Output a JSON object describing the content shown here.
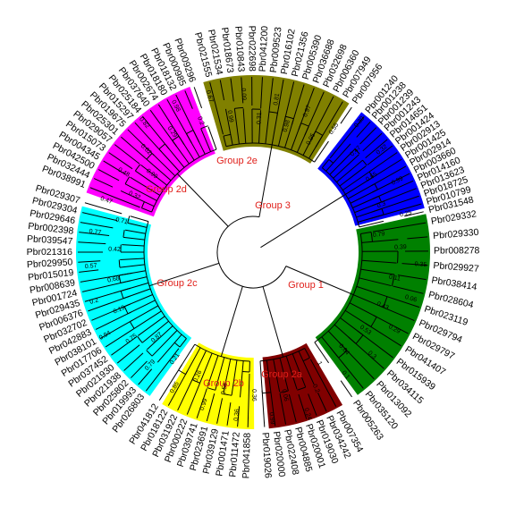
{
  "tree": {
    "groups": [
      {
        "key": "group1",
        "label": "Group 1",
        "color": "#008000",
        "leaves": [
          "Pbr029332",
          "Pbr029330",
          "Pbr008278",
          "Pbr029927",
          "Pbr038414",
          "Pbr028604",
          "Pbr023119",
          "Pbr029794",
          "Pbr029797",
          "Pbr041407",
          "Pbr015939",
          "Pbr034115",
          "Pbr013092",
          "Pbr035120",
          "Pbr005263"
        ]
      },
      {
        "key": "group2a",
        "label": "Group 2a",
        "color": "#800000",
        "leaves": [
          "Pbr007354",
          "Pbr034242",
          "Pbr019030",
          "Pbr020001",
          "Pbr004885",
          "Pbr022408",
          "Pbr020000",
          "Pbr019026"
        ]
      },
      {
        "key": "group2b",
        "label": "Group 2b",
        "color": "#ffff00",
        "leaves": [
          "Pbr041858",
          "Pbr011472",
          "Pbr001471",
          "Pbr039129",
          "Pbr023691",
          "Pbr039741",
          "Pbr000222",
          "Pbr031922",
          "Pbr018122",
          "Pbr041812"
        ]
      },
      {
        "key": "group2c",
        "label": "Group 2c",
        "color": "#00ffff",
        "leaves": [
          "Pbr026803",
          "Pbr019993",
          "Pbr025802",
          "Pbr021938",
          "Pbr021930",
          "Pbr037452",
          "Pbr017706",
          "Pbr038101",
          "Pbr042883",
          "Pbr032702",
          "Pbr006376",
          "Pbr029435",
          "Pbr001724",
          "Pbr008639",
          "Pbr015019",
          "Pbr029950",
          "Pbr021316",
          "Pbr039547",
          "Pbr002398",
          "Pbr029646",
          "Pbr029304",
          "Pbr029307"
        ]
      },
      {
        "key": "group2d",
        "label": "Group 2d",
        "color": "#ff00ff",
        "leaves": [
          "Pbr038991",
          "Pbr032444",
          "Pbr042500",
          "Pbr004345",
          "Pbr015073",
          "Pbr029057",
          "Pbr025301",
          "Pbr019675",
          "Pbr015297",
          "Pbr025184",
          "Pbr037640",
          "Pbr002674",
          "Pbr018180",
          "Pbr018132",
          "Pbr000985",
          "Pbr009296"
        ]
      },
      {
        "key": "group2e",
        "label": "Group 2e",
        "color": "#808000",
        "leaves": [
          "Pbr021555",
          "Pbr021534",
          "Pbr018673",
          "Pbr010843",
          "Pbr022698",
          "Pbr041200",
          "Pbr009523",
          "Pbr016102",
          "Pbr021356",
          "Pbr005390",
          "Pbr036688",
          "Pbr032698",
          "Pbr006360",
          "Pbr007949",
          "Pbr007956"
        ]
      },
      {
        "key": "group3",
        "label": "Group 3",
        "color": "#0000ff",
        "leaves": [
          "Pbr001240",
          "Pbr001238",
          "Pbr001239",
          "Pbr001243",
          "Pbr014651",
          "Pbr001424",
          "Pbr002913",
          "Pbr001425",
          "Pbr002914",
          "Pbr003660",
          "Pbr014160",
          "Pbr013623",
          "Pbr018725",
          "Pbr010799",
          "Pbr031548"
        ]
      }
    ],
    "support_values": [
      "0.79",
      "0.39",
      "0.35",
      "0.11",
      "0.06",
      "0.43",
      "0.29",
      "0.53",
      "0.3",
      "0.64",
      "0.1",
      "1",
      "0.2",
      "0.24",
      "0.06",
      "0.99",
      "0.36",
      "0.36",
      "0.58",
      "0.99",
      "0.26",
      "0.85",
      "0.21",
      "0.79",
      "0.87",
      "0.75",
      "0.94",
      "0.19",
      "0.2",
      "0.68",
      "0.57",
      "0.42",
      "0.77",
      "0.71",
      "0.47",
      "0.32",
      "0.48",
      "0.99",
      "0.62",
      "0.82",
      "0.29",
      "0.98",
      "0.2",
      "0.67",
      "0.99",
      "0.09",
      "0.31",
      "0.81",
      "0.98",
      "0.97",
      "0.95",
      "0.55",
      "0.39",
      "0.47",
      "0.32",
      "0.65",
      "0.99",
      "0.3",
      "0.25"
    ]
  }
}
